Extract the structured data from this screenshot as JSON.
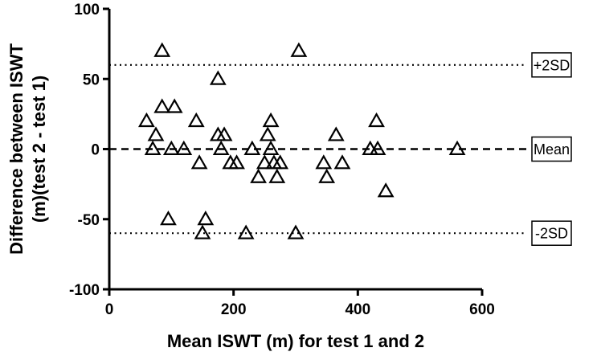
{
  "chart_data": {
    "type": "scatter",
    "title": "",
    "xlabel": "Mean ISWT (m) for test 1 and 2",
    "ylabel_lines": [
      "Difference between ISWT",
      "(m)(test 2 - test 1)"
    ],
    "xlim": [
      0,
      600
    ],
    "ylim": [
      -100,
      100
    ],
    "x_ticks": [
      0,
      200,
      400,
      600
    ],
    "x_tick_labels": [
      "0",
      "200",
      "400",
      "600"
    ],
    "y_ticks": [
      100,
      50,
      0,
      -50,
      -100
    ],
    "y_tick_labels": [
      "100",
      "50",
      "0",
      "-50",
      "-100"
    ],
    "grid": false,
    "marker": "open-triangle",
    "reference_lines": [
      {
        "label": "+2SD",
        "y": 60,
        "style": "dotted"
      },
      {
        "label": "Mean",
        "y": 0,
        "style": "dashed"
      },
      {
        "label": "-2SD",
        "y": -60,
        "style": "dotted"
      }
    ],
    "series": [
      {
        "points": [
          [
            60,
            20
          ],
          [
            70,
            0
          ],
          [
            75,
            10
          ],
          [
            85,
            70
          ],
          [
            85,
            30
          ],
          [
            95,
            -50
          ],
          [
            100,
            0
          ],
          [
            105,
            30
          ],
          [
            120,
            0
          ],
          [
            140,
            20
          ],
          [
            145,
            -10
          ],
          [
            150,
            -60
          ],
          [
            155,
            -50
          ],
          [
            175,
            50
          ],
          [
            175,
            10
          ],
          [
            180,
            0
          ],
          [
            185,
            10
          ],
          [
            195,
            -10
          ],
          [
            205,
            -10
          ],
          [
            220,
            -60
          ],
          [
            230,
            0
          ],
          [
            240,
            -20
          ],
          [
            250,
            -10
          ],
          [
            255,
            10
          ],
          [
            260,
            20
          ],
          [
            260,
            0
          ],
          [
            265,
            -10
          ],
          [
            270,
            -20
          ],
          [
            275,
            -10
          ],
          [
            300,
            -60
          ],
          [
            305,
            70
          ],
          [
            345,
            -10
          ],
          [
            350,
            -20
          ],
          [
            365,
            10
          ],
          [
            375,
            -10
          ],
          [
            420,
            0
          ],
          [
            430,
            20
          ],
          [
            432,
            0
          ],
          [
            445,
            -30
          ],
          [
            560,
            0
          ]
        ]
      }
    ]
  }
}
